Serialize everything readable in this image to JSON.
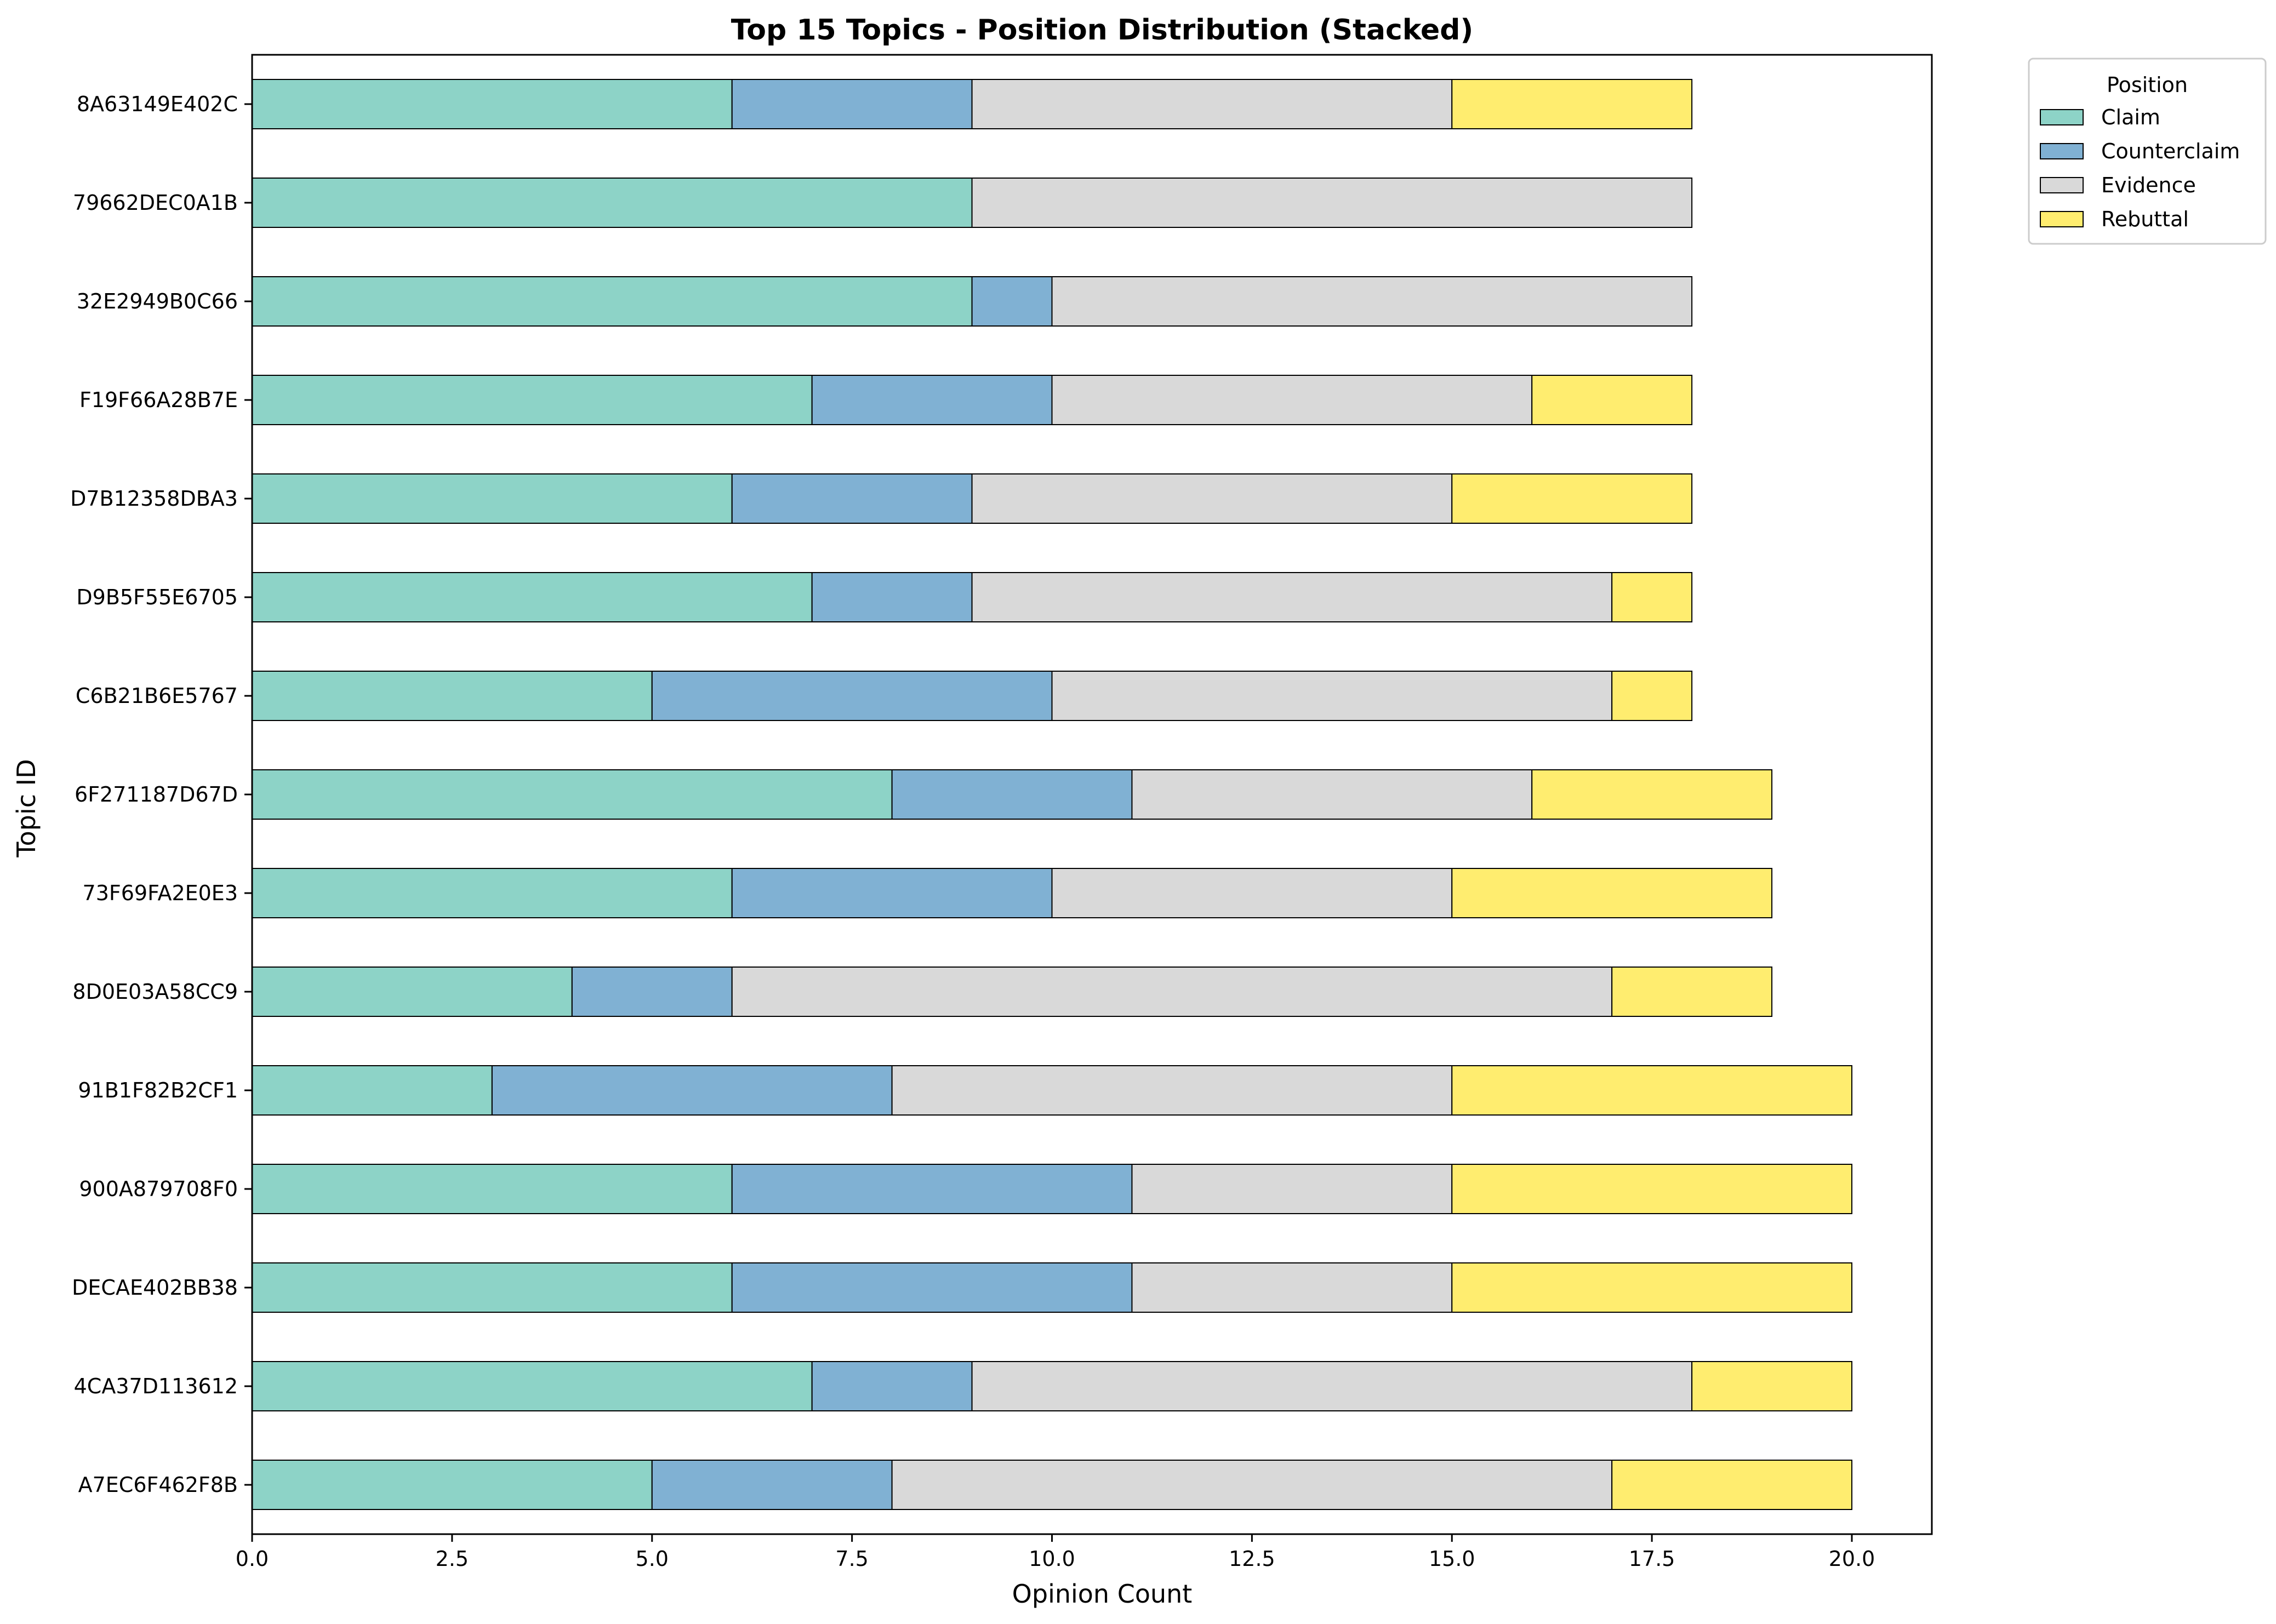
{
  "chart_data": {
    "type": "bar",
    "orientation": "horizontal",
    "stacked": true,
    "title": "Top 15 Topics - Position Distribution (Stacked)",
    "xlabel": "Opinion Count",
    "ylabel": "Topic ID",
    "xlim": [
      0,
      21
    ],
    "xticks": [
      0,
      2.5,
      5,
      7.5,
      10,
      12.5,
      15,
      17.5,
      20
    ],
    "xtick_labels": [
      "0.0",
      "2.5",
      "5.0",
      "7.5",
      "10.0",
      "12.5",
      "15.0",
      "17.5",
      "20.0"
    ],
    "grid": false,
    "legend": {
      "title": "Position",
      "placement": "outside-top-right"
    },
    "categories": [
      "8A63149E402C",
      "79662DEC0A1B",
      "32E2949B0C66",
      "F19F66A28B7E",
      "D7B12358DBA3",
      "D9B5F55E6705",
      "C6B21B6E5767",
      "6F271187D67D",
      "73F69FA2E0E3",
      "8D0E03A58CC9",
      "91B1F82B2CF1",
      "900A879708F0",
      "DECAE402BB38",
      "4CA37D113612",
      "A7EC6F462F8B"
    ],
    "series": [
      {
        "name": "Claim",
        "color": "#8dd3c7",
        "values": [
          6,
          9,
          9,
          7,
          6,
          7,
          5,
          8,
          6,
          4,
          3,
          6,
          6,
          7,
          5
        ]
      },
      {
        "name": "Counterclaim",
        "color": "#80b1d3",
        "values": [
          3,
          0,
          1,
          3,
          3,
          2,
          5,
          3,
          4,
          2,
          5,
          5,
          5,
          2,
          3
        ]
      },
      {
        "name": "Evidence",
        "color": "#d9d9d9",
        "values": [
          6,
          9,
          8,
          6,
          6,
          8,
          7,
          5,
          5,
          11,
          7,
          4,
          4,
          9,
          9
        ]
      },
      {
        "name": "Rebuttal",
        "color": "#ffed6f",
        "values": [
          3,
          0,
          0,
          2,
          3,
          1,
          1,
          3,
          4,
          2,
          5,
          5,
          5,
          2,
          3
        ]
      }
    ]
  }
}
